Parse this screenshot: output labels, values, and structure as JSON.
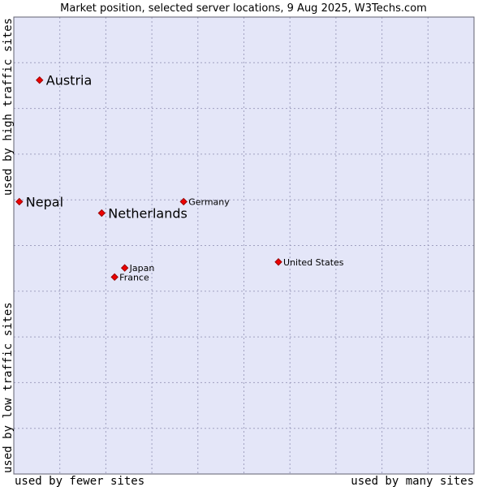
{
  "chart_data": {
    "type": "scatter",
    "title": "Market position, selected server locations, 9 Aug 2025, W3Techs.com",
    "xlabel_left": "used by fewer sites",
    "xlabel_right": "used by many sites",
    "ylabel_bottom": "used by low traffic sites",
    "ylabel_top": "used by high traffic sites",
    "xlim": [
      0,
      100
    ],
    "ylim": [
      0,
      100
    ],
    "grid": true,
    "points": [
      {
        "name": "Austria",
        "x": 5.6,
        "y": 86.2,
        "emphasis": true
      },
      {
        "name": "Nepal",
        "x": 1.2,
        "y": 59.6,
        "emphasis": true
      },
      {
        "name": "Netherlands",
        "x": 19.1,
        "y": 57.1,
        "emphasis": true
      },
      {
        "name": "Germany",
        "x": 36.9,
        "y": 59.6,
        "emphasis": false
      },
      {
        "name": "United States",
        "x": 57.5,
        "y": 46.4,
        "emphasis": false
      },
      {
        "name": "Japan",
        "x": 24.1,
        "y": 45.1,
        "emphasis": false
      },
      {
        "name": "France",
        "x": 21.9,
        "y": 43.1,
        "emphasis": false
      }
    ]
  },
  "colors": {
    "plot_background": "#e4e6f8",
    "grid": "#a0a0c0",
    "marker": "#ee0000",
    "marker_edge": "#990000"
  }
}
